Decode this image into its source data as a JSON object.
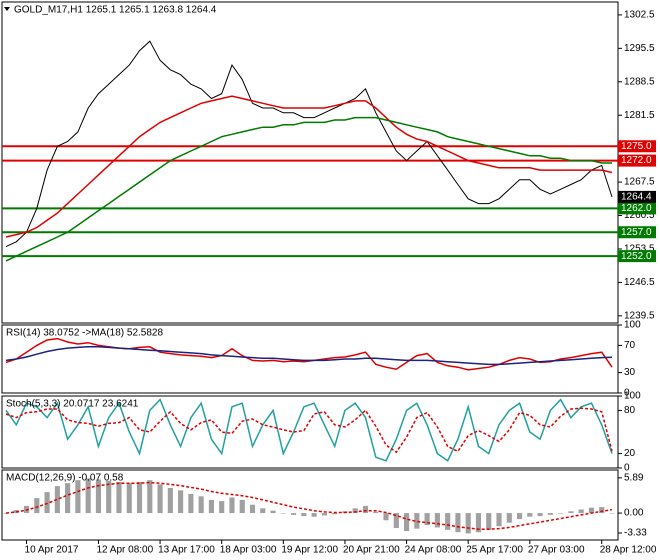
{
  "chart_data": [
    {
      "type": "line",
      "title": "GOLD_M17,H1  1265.1 1265.1 1263.8 1264.4",
      "categories": [
        null,
        null,
        "10 Apr 2017",
        null,
        null,
        null,
        null,
        null,
        null,
        "12 Apr 08:00",
        null,
        null,
        null,
        null,
        null,
        "13 Apr 17:00",
        null,
        null,
        null,
        null,
        null,
        "18 Apr 03:00",
        null,
        null,
        null,
        null,
        null,
        "19 Apr 12:00",
        null,
        null,
        null,
        null,
        null,
        "20 Apr 21:00",
        null,
        null,
        null,
        null,
        null,
        "24 Apr 08:00",
        null,
        null,
        null,
        null,
        null,
        "25 Apr 17:00",
        null,
        null,
        null,
        null,
        null,
        "27 Apr 03:00",
        null,
        null,
        null,
        null,
        null,
        null,
        "28 Apr 12:00",
        null
      ],
      "series": [
        {
          "name": "Close",
          "color": "#000000",
          "style": "line",
          "values": [
            1254,
            1255,
            1257,
            1262,
            1270,
            1275,
            1276,
            1278,
            1283,
            1286,
            1288,
            1290,
            1292,
            1295,
            1297,
            1293,
            1291,
            1290,
            1288,
            1287,
            1285,
            1286,
            1292,
            1289,
            1284,
            1283,
            1283,
            1282,
            1282,
            1281,
            1281,
            1282,
            1283,
            1284,
            1285,
            1287,
            1282,
            1278,
            1274,
            1272,
            1274,
            1276,
            1273,
            1270,
            1267,
            1264,
            1263,
            1263,
            1264,
            1266,
            1268,
            1268,
            1266,
            1265,
            1266,
            1267,
            1268,
            1270,
            1271,
            1264.4
          ]
        },
        {
          "name": "MA",
          "color": "#e00000",
          "style": "line",
          "values": [
            1256,
            1256.5,
            1257,
            1258,
            1259.5,
            1261,
            1263,
            1265,
            1267,
            1269,
            1271,
            1273,
            1275,
            1277,
            1278.5,
            1280,
            1281,
            1282,
            1283,
            1284,
            1284.5,
            1285,
            1285.5,
            1285,
            1284.5,
            1284,
            1283.5,
            1283,
            1283,
            1283,
            1283,
            1283,
            1283.5,
            1284,
            1284.5,
            1284.5,
            1283,
            1281,
            1279,
            1277.5,
            1276.5,
            1276,
            1275,
            1274,
            1273,
            1272,
            1271.5,
            1271,
            1270.5,
            1270.5,
            1270.5,
            1270.5,
            1270,
            1270,
            1270,
            1270,
            1270,
            1270,
            1270,
            1269.5
          ]
        },
        {
          "name": "MA200",
          "color": "#007a00",
          "style": "line",
          "values": [
            1251,
            1252,
            1253,
            1254,
            1255,
            1256,
            1257,
            1258.5,
            1260,
            1261.5,
            1263,
            1264.5,
            1266,
            1267.5,
            1269,
            1270.5,
            1272,
            1273,
            1274,
            1275,
            1276,
            1277,
            1277.5,
            1278,
            1278.5,
            1279,
            1279,
            1279.5,
            1279.5,
            1280,
            1280,
            1280,
            1280.5,
            1280.5,
            1281,
            1281,
            1281,
            1280.5,
            1280,
            1279.5,
            1279,
            1278.5,
            1278,
            1277,
            1276.5,
            1276,
            1275.5,
            1275,
            1274.5,
            1274,
            1273.5,
            1273,
            1273,
            1272.5,
            1272.5,
            1272,
            1272,
            1272,
            1271.5,
            1271.5
          ]
        }
      ],
      "levels": [
        {
          "value": 1275,
          "label": "1275.0",
          "color": "#e00000"
        },
        {
          "value": 1272,
          "label": "1272.0",
          "color": "#e00000"
        },
        {
          "value": 1262,
          "label": "1262.0",
          "color": "#007a00"
        },
        {
          "value": 1257,
          "label": "1257.0",
          "color": "#007a00"
        },
        {
          "value": 1252,
          "label": "1252.0",
          "color": "#007a00"
        }
      ],
      "last": 1264.4,
      "ylim": [
        1238,
        1305.2
      ],
      "yticks": [
        1302.5,
        1295.5,
        1288.5,
        1281.5,
        1274.5,
        1267.5,
        1260.5,
        1253.5,
        1246.5,
        1239.5
      ]
    },
    {
      "type": "line",
      "title": "RSI(14) 38.0752  ->MA(18) 52.5828",
      "series": [
        {
          "name": "RSI",
          "color": "#e00000",
          "style": "line",
          "values": [
            45,
            50,
            60,
            70,
            78,
            80,
            75,
            72,
            74,
            70,
            68,
            66,
            65,
            67,
            68,
            60,
            58,
            56,
            55,
            54,
            52,
            55,
            65,
            55,
            48,
            47,
            48,
            46,
            47,
            46,
            48,
            50,
            52,
            53,
            56,
            60,
            42,
            38,
            35,
            45,
            55,
            58,
            45,
            40,
            38,
            34,
            36,
            38,
            42,
            48,
            52,
            50,
            45,
            46,
            50,
            52,
            55,
            58,
            60,
            38.0752
          ]
        },
        {
          "name": "MA",
          "color": "#1a237e",
          "style": "line",
          "values": [
            48,
            50,
            53,
            57,
            61,
            64,
            66,
            67,
            68,
            68,
            67,
            66,
            65,
            64,
            63,
            62,
            61,
            60,
            59,
            58,
            56,
            55,
            54,
            53,
            52,
            51,
            51,
            50,
            49,
            48,
            48,
            48,
            49,
            50,
            50,
            51,
            51,
            50,
            49,
            48,
            48,
            48,
            47,
            46,
            45,
            44,
            43,
            42,
            42,
            43,
            44,
            45,
            46,
            47,
            48,
            49,
            50,
            51,
            52,
            52.5828
          ]
        }
      ],
      "ylim": [
        0,
        100
      ],
      "yticks": [
        100,
        70,
        30,
        0
      ]
    },
    {
      "type": "line",
      "title": "Stoch(5,3,3) 20.0717 23.6241",
      "series": [
        {
          "name": "Main",
          "color": "#20a0a0",
          "style": "line",
          "values": [
            80,
            60,
            90,
            85,
            70,
            90,
            40,
            60,
            85,
            30,
            70,
            90,
            50,
            20,
            80,
            95,
            60,
            30,
            70,
            90,
            40,
            20,
            85,
            90,
            30,
            60,
            80,
            20,
            50,
            85,
            90,
            60,
            30,
            80,
            90,
            70,
            15,
            10,
            40,
            80,
            90,
            60,
            20,
            10,
            40,
            85,
            30,
            20,
            60,
            80,
            90,
            50,
            40,
            80,
            95,
            70,
            85,
            90,
            60,
            20.0717
          ]
        },
        {
          "name": "Signal",
          "color": "#e00000",
          "style": "dash",
          "values": [
            75,
            70,
            77,
            78,
            82,
            82,
            67,
            63,
            62,
            58,
            62,
            63,
            70,
            53,
            50,
            65,
            78,
            62,
            53,
            63,
            67,
            50,
            48,
            65,
            68,
            60,
            57,
            53,
            50,
            52,
            75,
            78,
            60,
            57,
            67,
            80,
            58,
            32,
            22,
            43,
            70,
            77,
            57,
            30,
            23,
            45,
            52,
            45,
            37,
            53,
            77,
            73,
            60,
            57,
            72,
            82,
            83,
            82,
            78,
            23.6241
          ]
        }
      ],
      "ylim": [
        0,
        100
      ],
      "yticks": [
        100,
        80,
        20,
        0
      ]
    },
    {
      "type": "line",
      "title": "MACD(12,26,9) -0.07 0.58",
      "series": [
        {
          "name": "MACD",
          "color": "#a0a0a0",
          "style": "bar",
          "values": [
            0,
            0.5,
            1.2,
            2.5,
            3.5,
            4.5,
            5,
            5.5,
            5.8,
            5.6,
            5.4,
            5.2,
            5,
            5.2,
            5.5,
            4.8,
            4.2,
            3.8,
            3.2,
            2.8,
            2.2,
            2,
            2.6,
            2.2,
            1.4,
            0.8,
            0.4,
            0,
            -0.3,
            -0.5,
            -0.6,
            -0.4,
            -0.2,
            0.3,
            0.8,
            1.2,
            0.2,
            -1.2,
            -2.5,
            -3,
            -2.6,
            -2,
            -2.4,
            -2.8,
            -3.2,
            -3.4,
            -3.2,
            -2.8,
            -2.2,
            -1.6,
            -1,
            -0.6,
            -0.5,
            -0.3,
            0,
            0.3,
            0.6,
            0.9,
            1,
            -0.07
          ]
        },
        {
          "name": "Signal",
          "color": "#e00000",
          "style": "dash",
          "values": [
            0,
            0.2,
            0.5,
            1,
            1.6,
            2.3,
            3,
            3.6,
            4.2,
            4.6,
            4.8,
            5,
            5,
            5,
            5.1,
            5,
            4.8,
            4.6,
            4.3,
            4,
            3.6,
            3.3,
            3.1,
            2.9,
            2.6,
            2.2,
            1.8,
            1.4,
            1,
            0.7,
            0.4,
            0.2,
            0.1,
            0.1,
            0.2,
            0.4,
            0.4,
            0.1,
            -0.4,
            -1,
            -1.4,
            -1.6,
            -1.8,
            -2,
            -2.3,
            -2.5,
            -2.7,
            -2.7,
            -2.6,
            -2.4,
            -2.1,
            -1.8,
            -1.5,
            -1.2,
            -0.9,
            -0.6,
            -0.3,
            0,
            0.3,
            0.58
          ]
        }
      ],
      "ylim": [
        -4.5,
        7.2
      ],
      "yticks": [
        5.89,
        {
          "value": 0,
          "label": "0.00"
        },
        -3.33
      ]
    }
  ]
}
